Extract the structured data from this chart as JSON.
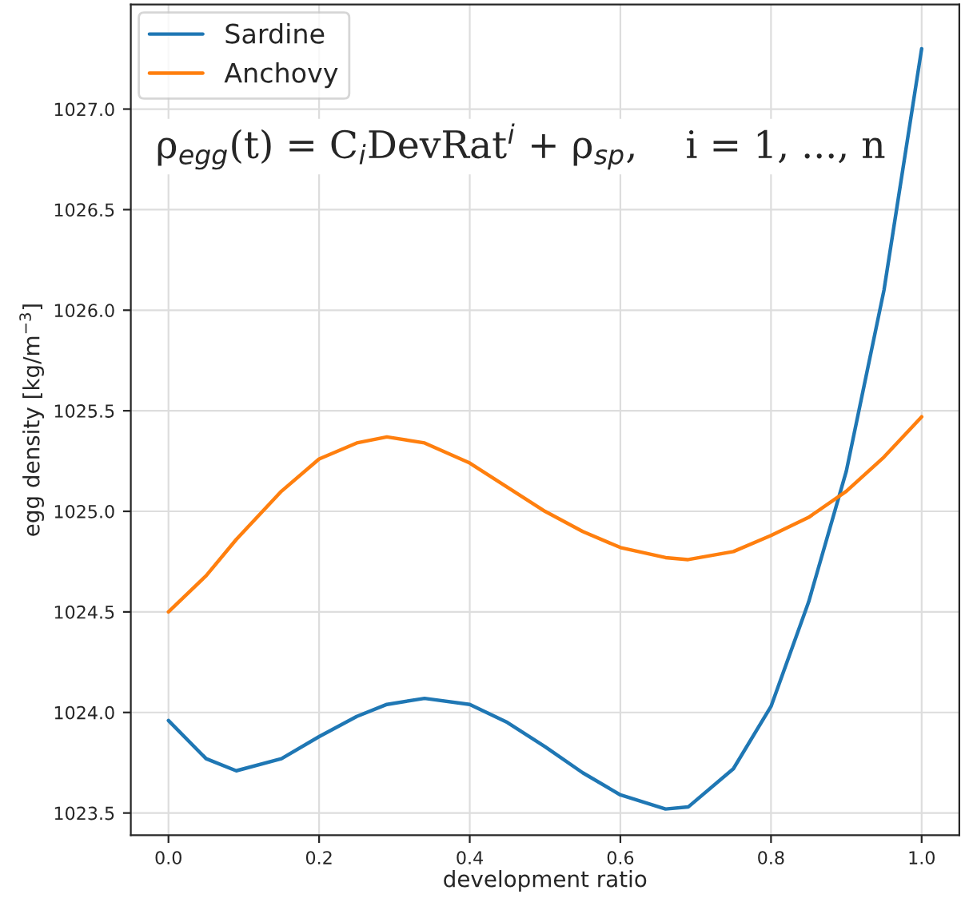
{
  "chart_data": {
    "type": "line",
    "xlabel": "development ratio",
    "ylabel": "egg density [kg/m$^{−3}$]",
    "annotations": [
      "ρ$_{egg}$(t) = C$_{i}$DevRat$^{i}$ + ρ$_{sp}$,    i = 1, ..., n"
    ],
    "x": [
      0,
      0.05,
      0.09,
      0.15,
      0.2,
      0.25,
      0.29,
      0.34,
      0.4,
      0.45,
      0.5,
      0.55,
      0.6,
      0.66,
      0.69,
      0.75,
      0.8,
      0.85,
      0.9,
      0.95,
      1.0
    ],
    "series": [
      {
        "name": "Sardine",
        "color": "#1f77b4",
        "values": [
          1023.96,
          1023.77,
          1023.71,
          1023.77,
          1023.88,
          1023.98,
          1024.04,
          1024.07,
          1024.04,
          1023.95,
          1023.83,
          1023.7,
          1023.59,
          1023.52,
          1023.53,
          1023.72,
          1024.03,
          1024.55,
          1025.2,
          1026.1,
          1027.3
        ]
      },
      {
        "name": "Anchovy",
        "color": "#ff7f0e",
        "values": [
          1024.5,
          1024.68,
          1024.86,
          1025.1,
          1025.26,
          1025.34,
          1025.37,
          1025.34,
          1025.24,
          1025.12,
          1025.0,
          1024.9,
          1024.82,
          1024.77,
          1024.76,
          1024.8,
          1024.88,
          1024.97,
          1025.1,
          1025.27,
          1025.47
        ]
      }
    ],
    "xlim": [
      -0.05,
      1.05
    ],
    "ylim": [
      1023.39,
      1027.52
    ],
    "xticks": [
      {
        "value": 0,
        "label": "0.0"
      },
      0.2,
      0.4,
      0.6,
      0.8,
      {
        "value": 1,
        "label": "1.0"
      }
    ],
    "yticks": [
      1023.5,
      {
        "value": 1024,
        "label": "1024.0"
      },
      1024.5,
      {
        "value": 1025,
        "label": "1025.0"
      },
      1025.5,
      {
        "value": 1026,
        "label": "1026.0"
      },
      1026.5,
      {
        "value": 1027,
        "label": "1027.0"
      }
    ],
    "grid": true,
    "legend": "top left",
    "line_style": "solid",
    "marker": "none"
  }
}
